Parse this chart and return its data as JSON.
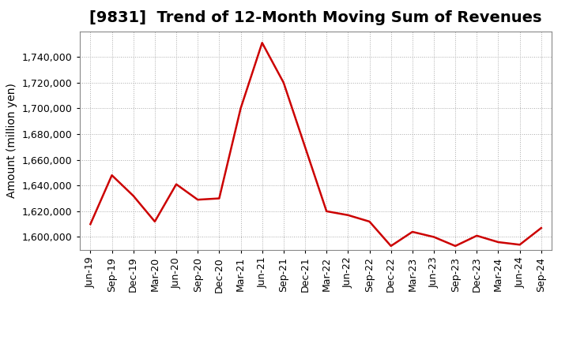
{
  "title": "[9831]  Trend of 12-Month Moving Sum of Revenues",
  "ylabel": "Amount (million yen)",
  "line_color": "#CC0000",
  "background_color": "#FFFFFF",
  "plot_bg_color": "#FFFFFF",
  "grid_color": "#AAAAAA",
  "x_labels": [
    "Jun-19",
    "Sep-19",
    "Dec-19",
    "Mar-20",
    "Jun-20",
    "Sep-20",
    "Dec-20",
    "Mar-21",
    "Jun-21",
    "Sep-21",
    "Dec-21",
    "Mar-22",
    "Jun-22",
    "Sep-22",
    "Dec-22",
    "Mar-23",
    "Jun-23",
    "Sep-23",
    "Dec-23",
    "Mar-24",
    "Jun-24",
    "Sep-24"
  ],
  "values": [
    1610000,
    1648000,
    1632000,
    1612000,
    1641000,
    1629000,
    1630000,
    1700000,
    1751000,
    1720000,
    1670000,
    1620000,
    1617000,
    1612000,
    1593000,
    1604000,
    1600000,
    1593000,
    1601000,
    1596000,
    1594000,
    1607000
  ],
  "ylim": [
    1590000,
    1760000
  ],
  "yticks": [
    1600000,
    1620000,
    1640000,
    1660000,
    1680000,
    1700000,
    1720000,
    1740000
  ],
  "title_fontsize": 14,
  "label_fontsize": 10,
  "tick_fontsize": 9
}
